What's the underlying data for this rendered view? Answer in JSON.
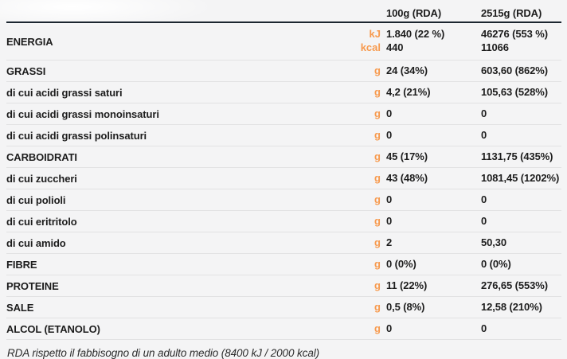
{
  "colors": {
    "accent_orange": "#f79a4e",
    "header_rule": "#1c2630",
    "row_divider": "#e2e2e3",
    "text": "#1d1d1d",
    "background": "#f4f4f5"
  },
  "table": {
    "columns": [
      "100g (RDA)",
      "2515g (RDA)"
    ],
    "rows": [
      {
        "label": "ENERGIA",
        "section": true,
        "lines": [
          {
            "unit": "kJ",
            "v100": "1.840 (22 %)",
            "v2515": "46276 (553 %)"
          },
          {
            "unit": "kcal",
            "v100": "440",
            "v2515": "11066"
          }
        ]
      },
      {
        "label": "GRASSI",
        "section": true,
        "lines": [
          {
            "unit": "g",
            "v100": "24 (34%)",
            "v2515": "603,60 (862%)"
          }
        ]
      },
      {
        "label": "di cui acidi grassi saturi",
        "section": false,
        "lines": [
          {
            "unit": "g",
            "v100": "4,2 (21%)",
            "v2515": "105,63 (528%)"
          }
        ]
      },
      {
        "label": "di cui acidi grassi monoinsaturi",
        "section": false,
        "lines": [
          {
            "unit": "g",
            "v100": "0",
            "v2515": "0"
          }
        ]
      },
      {
        "label": "di cui acidi grassi polinsaturi",
        "section": false,
        "lines": [
          {
            "unit": "g",
            "v100": "0",
            "v2515": "0"
          }
        ]
      },
      {
        "label": "CARBOIDRATI",
        "section": true,
        "lines": [
          {
            "unit": "g",
            "v100": "45 (17%)",
            "v2515": "1131,75 (435%)"
          }
        ]
      },
      {
        "label": "di cui zuccheri",
        "section": false,
        "lines": [
          {
            "unit": "g",
            "v100": "43 (48%)",
            "v2515": "1081,45 (1202%)"
          }
        ]
      },
      {
        "label": "di cui polioli",
        "section": false,
        "lines": [
          {
            "unit": "g",
            "v100": "0",
            "v2515": "0"
          }
        ]
      },
      {
        "label": "di cui eritritolo",
        "section": false,
        "lines": [
          {
            "unit": "g",
            "v100": "0",
            "v2515": "0"
          }
        ]
      },
      {
        "label": "di cui amido",
        "section": false,
        "lines": [
          {
            "unit": "g",
            "v100": "2",
            "v2515": "50,30"
          }
        ]
      },
      {
        "label": "FIBRE",
        "section": true,
        "lines": [
          {
            "unit": "g",
            "v100": "0 (0%)",
            "v2515": "0 (0%)"
          }
        ]
      },
      {
        "label": "PROTEINE",
        "section": true,
        "lines": [
          {
            "unit": "g",
            "v100": "11 (22%)",
            "v2515": "276,65 (553%)"
          }
        ]
      },
      {
        "label": "SALE",
        "section": true,
        "lines": [
          {
            "unit": "g",
            "v100": "0,5 (8%)",
            "v2515": "12,58 (210%)"
          }
        ]
      },
      {
        "label": "ALCOL (ETANOLO)",
        "section": true,
        "lines": [
          {
            "unit": "g",
            "v100": "0",
            "v2515": "0"
          }
        ]
      }
    ]
  },
  "footer": {
    "note": "RDA rispetto il fabbisogno di un adulto medio (8400 kJ / 2000 kcal)"
  }
}
